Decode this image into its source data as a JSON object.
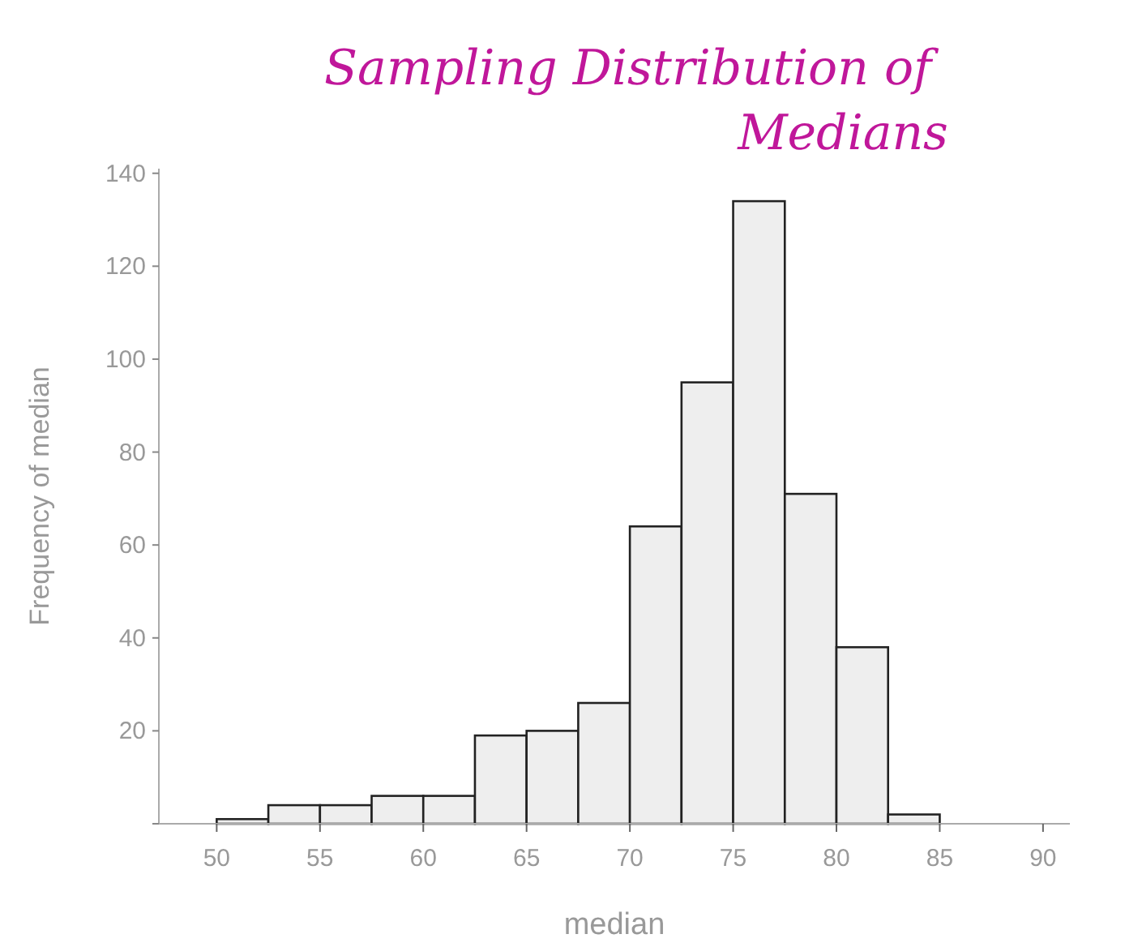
{
  "chart_data": {
    "type": "histogram",
    "title": "Sampling Distribution of Medians",
    "xlabel": "median",
    "ylabel": "Frequency of median",
    "bins": [
      50,
      52.5,
      55,
      57.5,
      60,
      62.5,
      65,
      67.5,
      70,
      72.5,
      75,
      77.5,
      80,
      82.5,
      85
    ],
    "values": [
      1,
      4,
      4,
      6,
      6,
      19,
      20,
      26,
      64,
      95,
      134,
      71,
      38,
      2
    ],
    "color": "#eeeeee",
    "xlim": [
      47.2,
      91.3
    ],
    "xticks": [
      50,
      55,
      60,
      65,
      70,
      75,
      80,
      85,
      90
    ],
    "ylim": [
      0,
      141
    ],
    "yticks": [
      {
        "value": 0,
        "label": null
      },
      20,
      40,
      60,
      80,
      100,
      120,
      140
    ],
    "grid": false
  }
}
